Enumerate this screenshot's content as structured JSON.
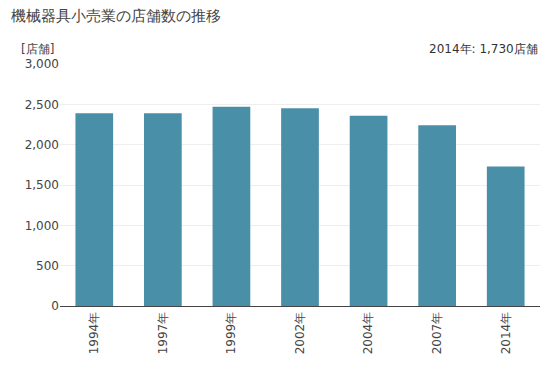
{
  "chart_data": {
    "type": "bar",
    "title": "機械器具小売業の店舗数の推移",
    "ylabel": "[店舗]",
    "annotation": "2014年: 1,730店舗",
    "categories": [
      "1994年",
      "1997年",
      "1999年",
      "2002年",
      "2004年",
      "2007年",
      "2014年"
    ],
    "values": [
      2390,
      2390,
      2470,
      2450,
      2360,
      2240,
      1730
    ],
    "color": "#4a8fa8",
    "ylim": [
      0,
      3000
    ],
    "yticks": [
      0,
      500,
      {
        "value": 1000,
        "label": "1,000"
      },
      {
        "value": 1500,
        "label": "1,500"
      },
      {
        "value": 2000,
        "label": "2,000"
      },
      {
        "value": 2500,
        "label": "2,500"
      },
      {
        "value": 3000,
        "label": "3,000"
      }
    ],
    "grid": true
  }
}
